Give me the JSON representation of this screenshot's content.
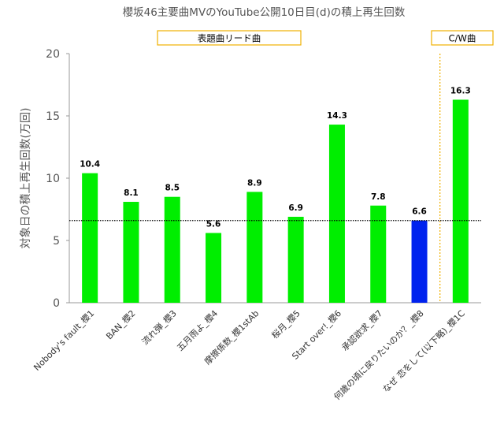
{
  "chart_data": {
    "type": "bar",
    "title": "櫻坂46主要曲MVのYouTube公開10日目(d)の積上再生回数",
    "ylabel": "対象日の積上再生回数(万回)",
    "xlabel": "",
    "ylim": [
      0,
      20
    ],
    "yticks": [
      0,
      5,
      10,
      15,
      20
    ],
    "grid": false,
    "categories": [
      "Nobody's fault_櫻1",
      "BAN_櫻2",
      "流れ弾_櫻3",
      "五月雨よ_櫻4",
      "摩擦係数_櫻1stAb",
      "桜月_櫻5",
      "Start over!_櫻6",
      "承認欲求_櫻7",
      "何歳の頃に戻りたいのか？_櫻8",
      "なぜ 恋をして(以下略)_櫻1C"
    ],
    "values": [
      10.4,
      8.1,
      8.5,
      5.6,
      8.9,
      6.9,
      14.3,
      7.8,
      6.6,
      16.3
    ],
    "value_labels": [
      "10.4",
      "8.1",
      "8.5",
      "5.6",
      "8.9",
      "6.9",
      "14.3",
      "7.8",
      "6.6",
      "16.3"
    ],
    "bar_colors": [
      "#00ee00",
      "#00ee00",
      "#00ee00",
      "#00ee00",
      "#00ee00",
      "#00ee00",
      "#00ee00",
      "#00ee00",
      "#0022ee",
      "#00ee00"
    ],
    "reference_line": {
      "value": 6.6,
      "style": "dotted",
      "color": "#000000"
    },
    "groups": [
      {
        "label": "表題曲リード曲",
        "from": 0,
        "to": 8
      },
      {
        "label": "C/W曲",
        "from": 9,
        "to": 9
      }
    ],
    "group_box_color": "#f0b000"
  }
}
